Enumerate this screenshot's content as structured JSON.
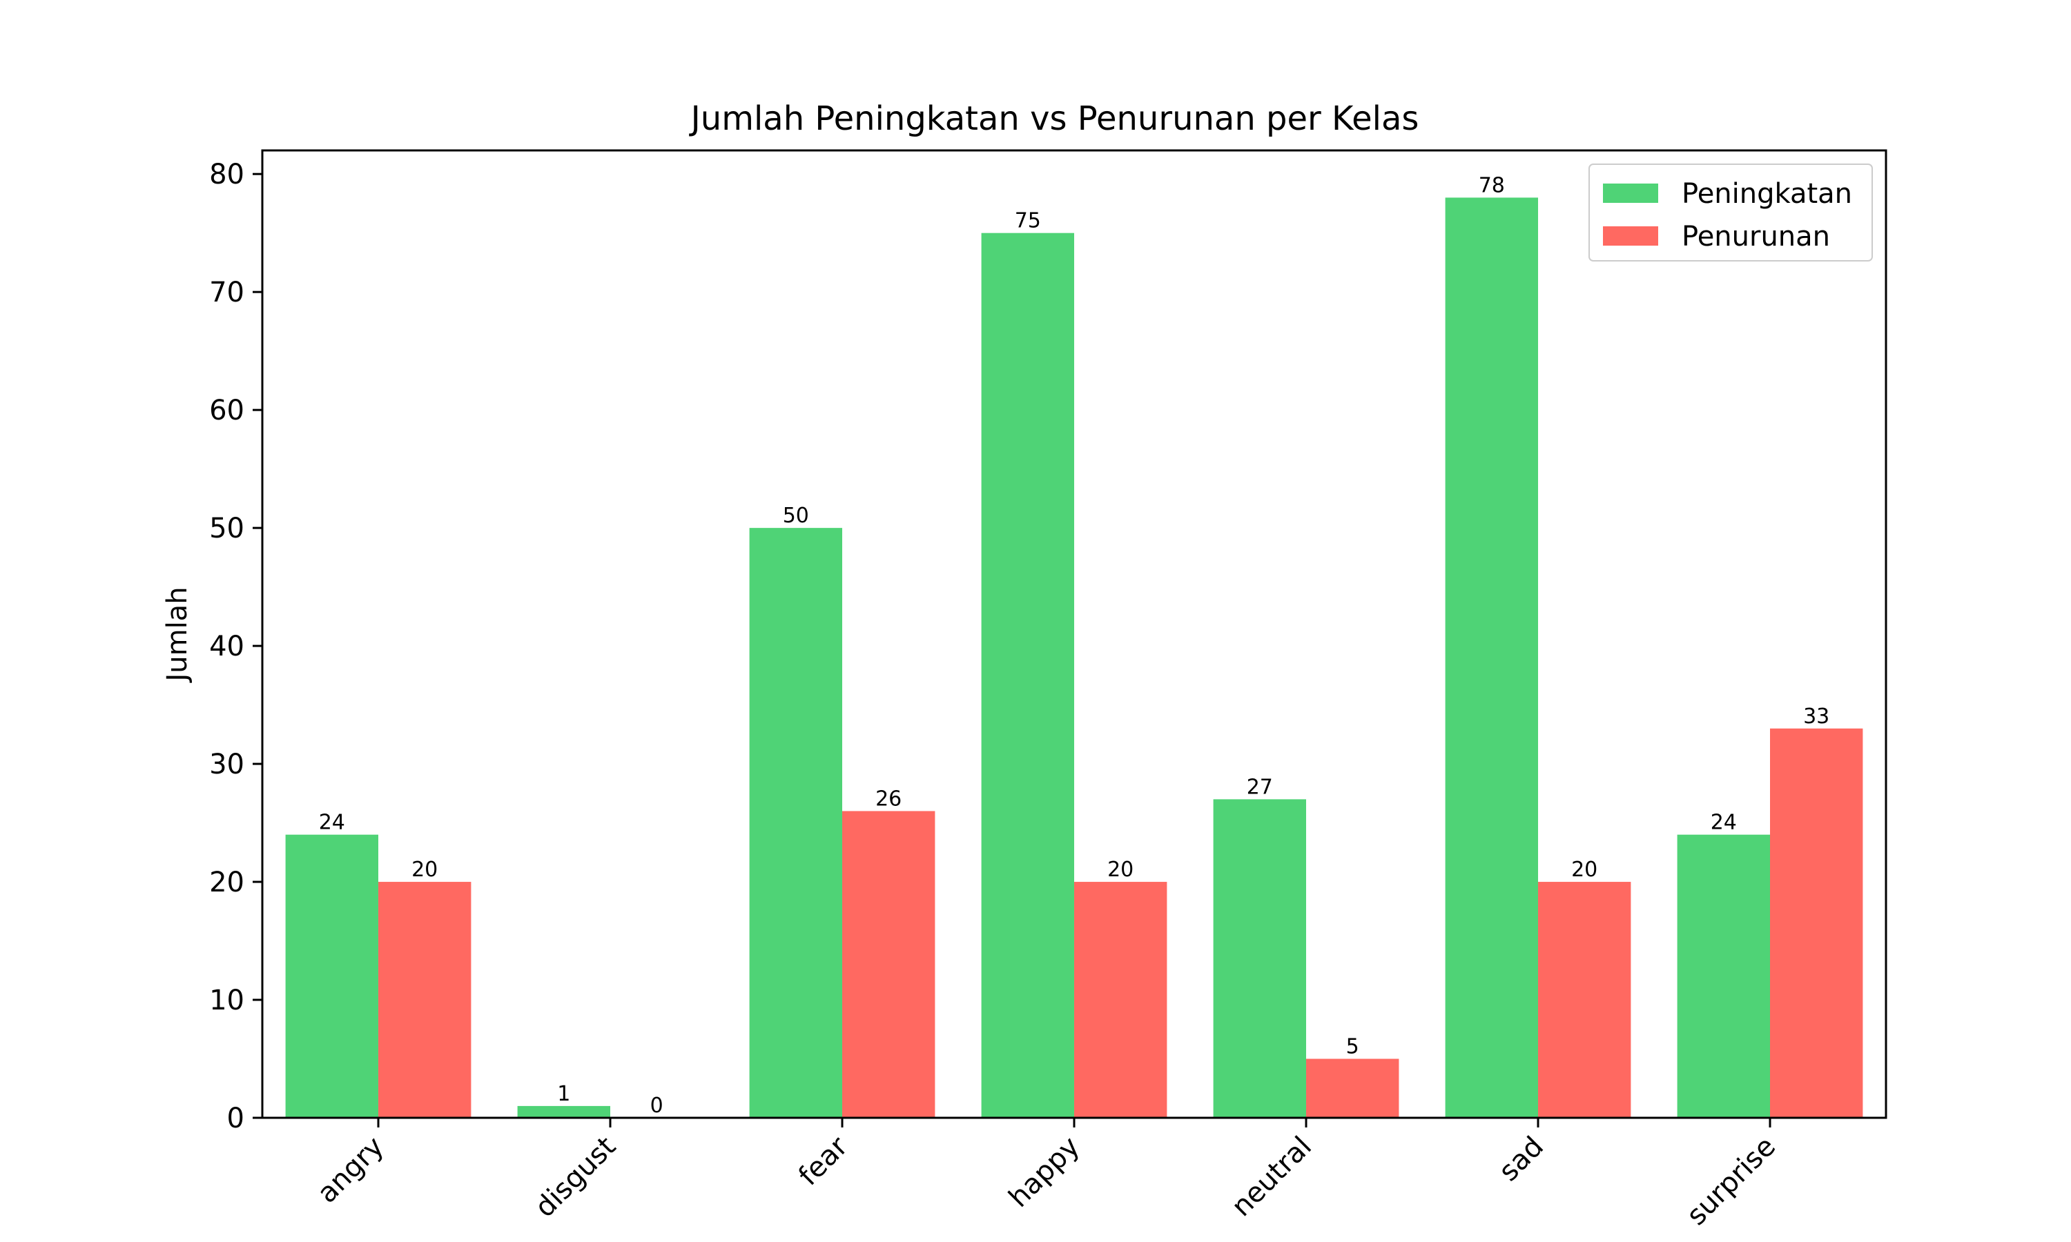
{
  "chart_data": {
    "type": "bar",
    "title": "Jumlah Peningkatan vs Penurunan per Kelas",
    "xlabel": "",
    "ylabel": "Jumlah",
    "categories": [
      "angry",
      "disgust",
      "fear",
      "happy",
      "neutral",
      "sad",
      "surprise"
    ],
    "series": [
      {
        "name": "Peningkatan",
        "color": "#4fd376",
        "values": [
          24,
          1,
          50,
          75,
          27,
          78,
          24
        ]
      },
      {
        "name": "Penurunan",
        "color": "#ff6961",
        "values": [
          20,
          0,
          26,
          20,
          5,
          20,
          33
        ]
      }
    ],
    "ylim": [
      0,
      82
    ],
    "yticks": [
      0,
      10,
      20,
      30,
      40,
      50,
      60,
      70,
      80
    ],
    "grid": false,
    "legend_position": "top-right",
    "data_labels": true
  }
}
